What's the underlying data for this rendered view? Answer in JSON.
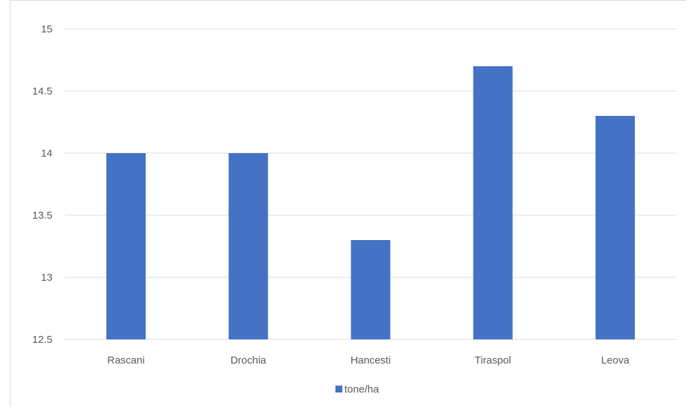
{
  "chart_data": {
    "type": "bar",
    "categories": [
      "Rascani",
      "Drochia",
      "Hancesti",
      "Tiraspol",
      "Leova"
    ],
    "series": [
      {
        "name": "tone/ha",
        "values": [
          14,
          14,
          13.3,
          14.7,
          14.3
        ],
        "color": "#4472C4"
      }
    ],
    "ylim": [
      12.5,
      15
    ],
    "yticks": [
      "12.5",
      "13",
      "13.5",
      "14",
      "14.5",
      "15"
    ],
    "ytick_values": [
      12.5,
      13,
      13.5,
      14,
      14.5,
      15
    ],
    "grid": true,
    "legend_placement": "bottom",
    "gridline_color": "#d9d9d9"
  }
}
